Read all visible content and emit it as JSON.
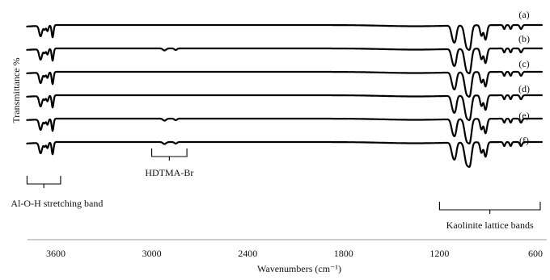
{
  "chart_data": {
    "type": "line",
    "xlabel": "Wavenumbers (cm⁻¹)",
    "ylabel": "Transmittance %",
    "xlim": [
      3800,
      550
    ],
    "x_reversed": true,
    "grid": false,
    "x_ticks": [
      {
        "value": 3600,
        "label": "3600"
      },
      {
        "value": 3000,
        "label": "3000"
      },
      {
        "value": 2400,
        "label": "2400"
      },
      {
        "value": 1800,
        "label": "1800"
      },
      {
        "value": 1200,
        "label": "1200"
      },
      {
        "value": 600,
        "label": "600"
      }
    ],
    "series": [
      {
        "name": "(a)",
        "hdtma": false
      },
      {
        "name": "(b)",
        "hdtma": true
      },
      {
        "name": "(c)",
        "hdtma": false
      },
      {
        "name": "(d)",
        "hdtma": false
      },
      {
        "name": "(e)",
        "hdtma": true
      },
      {
        "name": "(f)",
        "hdtma": true
      }
    ],
    "annotations": [
      {
        "text": "Al-O-H stretching band",
        "x_range": [
          3780,
          3570
        ]
      },
      {
        "text": "HDTMA-Br",
        "x_range": [
          3000,
          2780
        ]
      },
      {
        "text": "Kaolinite lattice bands",
        "x_range": [
          1200,
          570
        ]
      }
    ]
  }
}
